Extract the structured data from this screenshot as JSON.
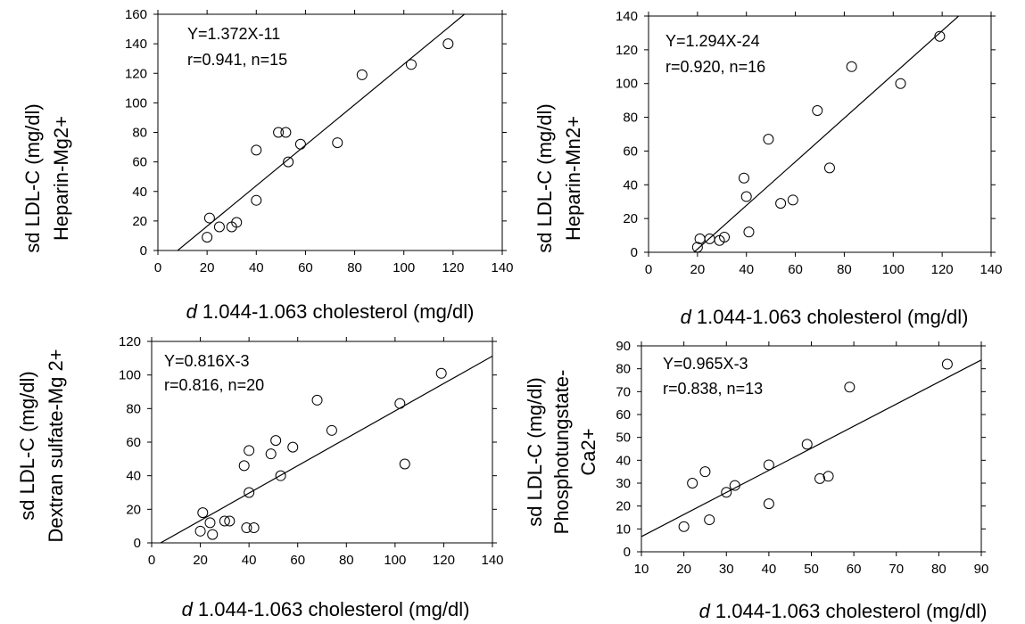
{
  "chart_data": [
    {
      "type": "scatter",
      "xlabel_italic": "d",
      "xlabel_rest": " 1.044-1.063 cholesterol (mg/dl)",
      "ylabel_lines": [
        "sd LDL-C (mg/dl)",
        "Heparin-Mg2+"
      ],
      "annotation": [
        "Y=1.372X-11",
        "r=0.941, n=15"
      ],
      "xlim": [
        0,
        140
      ],
      "ylim": [
        0,
        160
      ],
      "xticks": [
        0,
        20,
        40,
        60,
        80,
        100,
        120,
        140
      ],
      "yticks": [
        0,
        20,
        40,
        60,
        80,
        100,
        120,
        140,
        160
      ],
      "fit": {
        "slope": 1.372,
        "intercept": -11
      },
      "points": [
        [
          20,
          9
        ],
        [
          21,
          22
        ],
        [
          25,
          16
        ],
        [
          30,
          16
        ],
        [
          32,
          19
        ],
        [
          40,
          68
        ],
        [
          40,
          34
        ],
        [
          49,
          80
        ],
        [
          52,
          80
        ],
        [
          53,
          60
        ],
        [
          58,
          72
        ],
        [
          73,
          73
        ],
        [
          83,
          119
        ],
        [
          103,
          126
        ],
        [
          118,
          140
        ]
      ]
    },
    {
      "type": "scatter",
      "xlabel_italic": "d",
      "xlabel_rest": " 1.044-1.063 cholesterol (mg/dl)",
      "ylabel_lines": [
        "sd LDL-C (mg/dl)",
        "Heparin-Mn2+"
      ],
      "annotation": [
        "Y=1.294X-24",
        "r=0.920, n=16"
      ],
      "xlim": [
        0,
        140
      ],
      "ylim": [
        0,
        140
      ],
      "xticks": [
        0,
        20,
        40,
        60,
        80,
        100,
        120,
        140
      ],
      "yticks": [
        0,
        20,
        40,
        60,
        80,
        100,
        120,
        140
      ],
      "fit": {
        "slope": 1.294,
        "intercept": -24
      },
      "points": [
        [
          20,
          3
        ],
        [
          21,
          8
        ],
        [
          25,
          8
        ],
        [
          29,
          7
        ],
        [
          31,
          9
        ],
        [
          39,
          44
        ],
        [
          40,
          33
        ],
        [
          41,
          12
        ],
        [
          49,
          67
        ],
        [
          54,
          29
        ],
        [
          59,
          31
        ],
        [
          69,
          84
        ],
        [
          74,
          50
        ],
        [
          83,
          110
        ],
        [
          103,
          100
        ],
        [
          119,
          128
        ]
      ]
    },
    {
      "type": "scatter",
      "xlabel_italic": "d",
      "xlabel_rest": " 1.044-1.063 cholesterol (mg/dl)",
      "ylabel_lines": [
        "sd LDL-C (mg/dl)",
        "Dextran sulfate-Mg 2+"
      ],
      "annotation": [
        "Y=0.816X-3",
        "r=0.816, n=20"
      ],
      "xlim": [
        0,
        140
      ],
      "ylim": [
        0,
        120
      ],
      "xticks": [
        0,
        20,
        40,
        60,
        80,
        100,
        120,
        140
      ],
      "yticks": [
        0,
        20,
        40,
        60,
        80,
        100,
        120
      ],
      "fit": {
        "slope": 0.816,
        "intercept": -3
      },
      "points": [
        [
          20,
          7
        ],
        [
          21,
          18
        ],
        [
          24,
          12
        ],
        [
          25,
          5
        ],
        [
          30,
          13
        ],
        [
          32,
          13
        ],
        [
          38,
          46
        ],
        [
          39,
          9
        ],
        [
          40,
          55
        ],
        [
          40,
          30
        ],
        [
          42,
          9
        ],
        [
          49,
          53
        ],
        [
          51,
          61
        ],
        [
          53,
          40
        ],
        [
          58,
          57
        ],
        [
          68,
          85
        ],
        [
          74,
          67
        ],
        [
          102,
          83
        ],
        [
          104,
          47
        ],
        [
          119,
          101
        ]
      ]
    },
    {
      "type": "scatter",
      "xlabel_italic": "d",
      "xlabel_rest": " 1.044-1.063 cholesterol (mg/dl)",
      "ylabel_lines": [
        "sd LDL-C (mg/dl)",
        "Phosphotungstate-",
        "Ca2+"
      ],
      "annotation": [
        "Y=0.965X-3",
        "r=0.838, n=13"
      ],
      "xlim": [
        10,
        90
      ],
      "ylim": [
        0,
        90
      ],
      "xticks": [
        10,
        20,
        30,
        40,
        50,
        60,
        70,
        80,
        90
      ],
      "yticks": [
        0,
        10,
        20,
        30,
        40,
        50,
        60,
        70,
        80,
        90
      ],
      "fit": {
        "slope": 0.965,
        "intercept": -3
      },
      "points": [
        [
          20,
          11
        ],
        [
          22,
          30
        ],
        [
          25,
          35
        ],
        [
          26,
          14
        ],
        [
          30,
          26
        ],
        [
          32,
          29
        ],
        [
          40,
          38
        ],
        [
          40,
          21
        ],
        [
          49,
          47
        ],
        [
          52,
          32
        ],
        [
          54,
          33
        ],
        [
          59,
          72
        ],
        [
          82,
          82
        ]
      ]
    }
  ]
}
